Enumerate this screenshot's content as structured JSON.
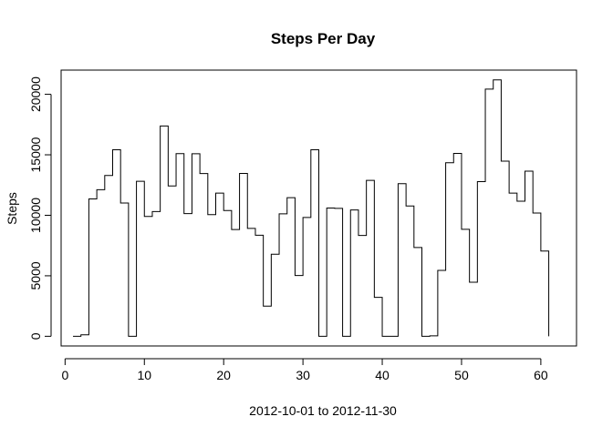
{
  "chart_data": {
    "type": "line",
    "title": "Steps Per Day",
    "xlabel": "2012-10-01  to  2012-11-30",
    "ylabel": "Steps",
    "xlim": [
      -0.5,
      64.5
    ],
    "ylim": [
      -800,
      22000
    ],
    "x_ticks": [
      0,
      10,
      20,
      30,
      40,
      50,
      60
    ],
    "y_ticks": [
      0,
      5000,
      10000,
      15000,
      20000
    ],
    "grid": false,
    "series": [
      {
        "line_style": "steps",
        "x": [
          1,
          2,
          3,
          4,
          5,
          6,
          7,
          8,
          9,
          10,
          11,
          12,
          13,
          14,
          15,
          16,
          17,
          18,
          19,
          20,
          21,
          22,
          23,
          24,
          25,
          26,
          27,
          28,
          29,
          30,
          31,
          32,
          33,
          34,
          35,
          36,
          37,
          38,
          39,
          40,
          41,
          42,
          43,
          44,
          45,
          46,
          47,
          48,
          49,
          50,
          51,
          52,
          53,
          54,
          55,
          56,
          57,
          58,
          59,
          60,
          61
        ],
        "values": [
          0,
          126,
          11352,
          12116,
          13294,
          15420,
          11015,
          0,
          12811,
          9900,
          10304,
          17382,
          12426,
          15098,
          10139,
          15084,
          13452,
          10056,
          11829,
          10395,
          8821,
          13460,
          8918,
          8355,
          2492,
          6778,
          10119,
          11458,
          5018,
          9819,
          15414,
          0,
          10600,
          10571,
          0,
          10439,
          8334,
          12883,
          3219,
          0,
          0,
          12608,
          10765,
          7336,
          0,
          41,
          5441,
          14339,
          15110,
          8841,
          4472,
          12787,
          20427,
          21194,
          14478,
          11834,
          11162,
          13646,
          10183,
          7047,
          0
        ]
      }
    ]
  }
}
